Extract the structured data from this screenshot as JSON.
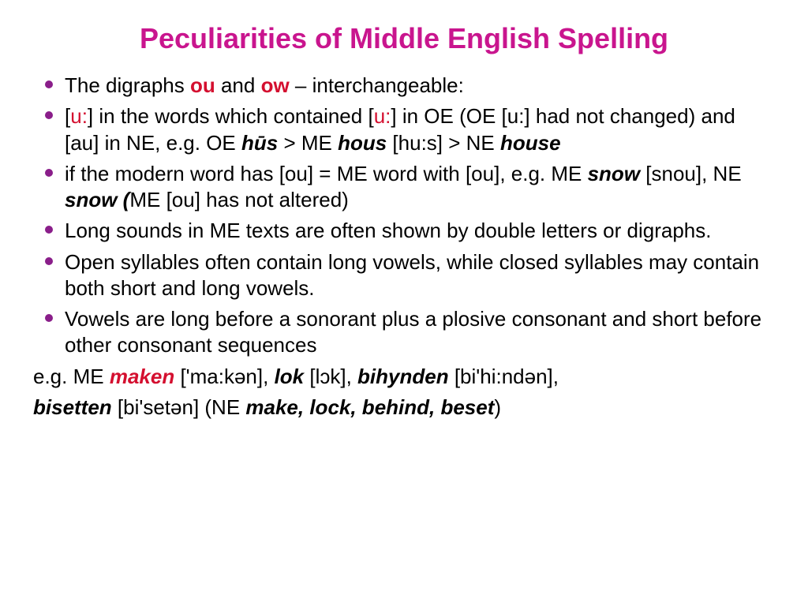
{
  "colors": {
    "title": "#c9158e",
    "bullet": "#8a1e8a",
    "accent": "#d40f2f",
    "text": "#000000",
    "background": "#ffffff"
  },
  "title": "Peculiarities of Middle English Spelling",
  "b1": {
    "t1": "The digraphs ",
    "ou": "ou",
    "t2": " and ",
    "ow": "ow",
    "t3": " – interchangeable:"
  },
  "b2": {
    "t1": "[",
    "u1": "u:",
    "t2": "] in the words which contained [",
    "u2": "u:",
    "t3": "] in OE (OE [u:] had not changed) and [au] in NE, e.g. OE ",
    "hus": "hūs",
    "t4": " > ME ",
    "hous": "hous",
    "t5": " [hu:s] > NE ",
    "house": "house"
  },
  "b3": {
    "t1": "if the modern word has [ou] = ME word with [ou], e.g. ME ",
    "snow1": "snow",
    "t2": " [snou], NE ",
    "snow2": "snow (",
    "t3": "ME [ou] has not altered)"
  },
  "b4": {
    "t1": "Long sounds in ME texts are often shown by double letters or digraphs."
  },
  "b5": {
    "t1": "Open syllables often contain long vowels, while closed syllables may contain both short and long vowels."
  },
  "b6": {
    "t1": "Vowels are long before a sonorant plus a plosive consonant and short before other consonant sequences"
  },
  "l7": {
    "t1": "e.g. ME ",
    "maken": "maken",
    "t2": " ['ma:kən], ",
    "lok": "lok",
    "t3": " [lɔk], ",
    "bihynden": "bihynden",
    "t4": " [bi'hi:ndən],"
  },
  "l8": {
    "bisetten": "bisetten",
    "t1": " [bi'setən] (NE ",
    "words": "make, lock, behind, beset",
    "t2": ")"
  }
}
